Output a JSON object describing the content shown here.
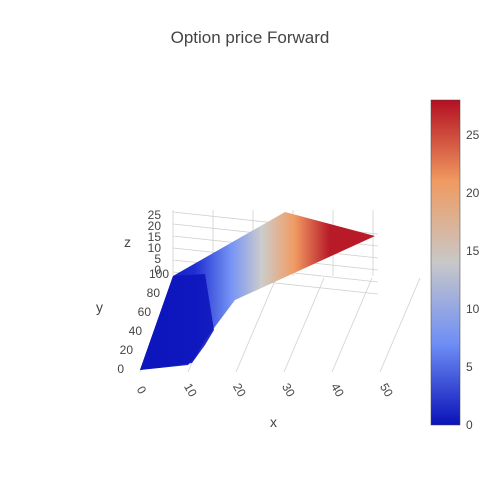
{
  "chart_data": {
    "type": "surface",
    "title": "Option price Forward",
    "xlabel": "x",
    "ylabel": "y",
    "zlabel": "z",
    "x_ticks": [
      "0",
      "10",
      "20",
      "30",
      "40",
      "50"
    ],
    "y_ticks": [
      "0",
      "20",
      "40",
      "60",
      "80",
      "100"
    ],
    "z_ticks": [
      "0",
      "5",
      "10",
      "15",
      "20",
      "25"
    ],
    "xlim": [
      0,
      50
    ],
    "ylim": [
      0,
      100
    ],
    "zlim": [
      0,
      28
    ],
    "surface": {
      "description_of_shape": "z rises with x; flat near 0 for x below ~12, then approx linear",
      "x": [
        0,
        5,
        10,
        12,
        15,
        20,
        25,
        30,
        35,
        40,
        45,
        50
      ],
      "z": [
        0,
        0,
        0.3,
        0.8,
        2.5,
        5.5,
        8.5,
        11.5,
        14.5,
        17.5,
        20.5,
        23.5
      ]
    },
    "colorscale": {
      "name": "coolwarm",
      "range": [
        0,
        28
      ],
      "ticks": [
        "0",
        "5",
        "10",
        "15",
        "20",
        "25"
      ],
      "colors": [
        "#0a12b8",
        "#6e8ef5",
        "#c8c8c8",
        "#f09a60",
        "#b40f22"
      ]
    },
    "grid": true
  }
}
